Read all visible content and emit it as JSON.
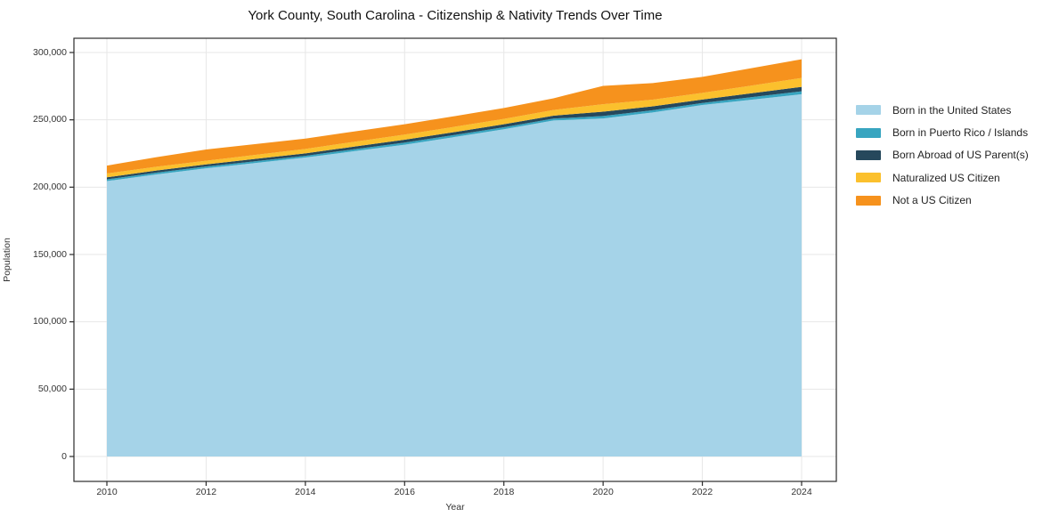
{
  "chart_data": {
    "type": "area",
    "stacked": true,
    "title": "York County, South Carolina - Citizenship & Nativity Trends Over Time",
    "xlabel": "Year",
    "ylabel": "Population",
    "x": [
      2010,
      2011,
      2012,
      2013,
      2014,
      2015,
      2016,
      2017,
      2018,
      2019,
      2020,
      2021,
      2022,
      2023,
      2024
    ],
    "series": [
      {
        "name": "Born in the United States",
        "color": "#A5D3E8",
        "values": [
          204500,
          209500,
          214000,
          218000,
          222000,
          226800,
          231500,
          237200,
          243000,
          249500,
          251000,
          255500,
          261000,
          265000,
          269000
        ]
      },
      {
        "name": "Born in Puerto Rico / Islands",
        "color": "#38A5C0",
        "values": [
          1300,
          1300,
          1300,
          1300,
          1300,
          1450,
          1600,
          1550,
          1500,
          1400,
          1800,
          1650,
          1500,
          1850,
          2200
        ]
      },
      {
        "name": "Born Abroad of US Parent(s)",
        "color": "#26485C",
        "values": [
          1500,
          1550,
          1600,
          1700,
          1800,
          1950,
          2100,
          2150,
          2200,
          2200,
          3300,
          2900,
          2600,
          2950,
          3300
        ]
      },
      {
        "name": "Naturalized US Citizen",
        "color": "#FBC02D",
        "values": [
          2900,
          2800,
          2700,
          3000,
          3300,
          3550,
          3800,
          3900,
          4000,
          4200,
          5500,
          4900,
          4900,
          5700,
          6600
        ]
      },
      {
        "name": "Not a US Citizen",
        "color": "#F6921D",
        "values": [
          5800,
          7100,
          8400,
          8000,
          7700,
          7700,
          7700,
          7900,
          8100,
          8700,
          13600,
          12300,
          11900,
          12900,
          13900
        ]
      }
    ],
    "x_ticks": [
      {
        "value": 2010,
        "label": "2010"
      },
      {
        "value": 2012,
        "label": "2012"
      },
      {
        "value": 2014,
        "label": "2014"
      },
      {
        "value": 2016,
        "label": "2016"
      },
      {
        "value": 2018,
        "label": "2018"
      },
      {
        "value": 2020,
        "label": "2020"
      },
      {
        "value": 2022,
        "label": "2022"
      },
      {
        "value": 2024,
        "label": "2024"
      }
    ],
    "y_ticks": [
      {
        "value": 0,
        "label": "0"
      },
      {
        "value": 50000,
        "label": "50,000"
      },
      {
        "value": 100000,
        "label": "100,000"
      },
      {
        "value": 150000,
        "label": "150,000"
      },
      {
        "value": 200000,
        "label": "200,000"
      },
      {
        "value": 250000,
        "label": "250,000"
      },
      {
        "value": 300000,
        "label": "300,000"
      }
    ],
    "ylim": [
      0,
      300000
    ],
    "grid": true,
    "legend_position": "right"
  },
  "colors": {
    "background": "#ffffff",
    "frame": "#2b2b2b",
    "grid": "#e7e7e7",
    "tick_text": "#333333",
    "title_text": "#111111"
  }
}
